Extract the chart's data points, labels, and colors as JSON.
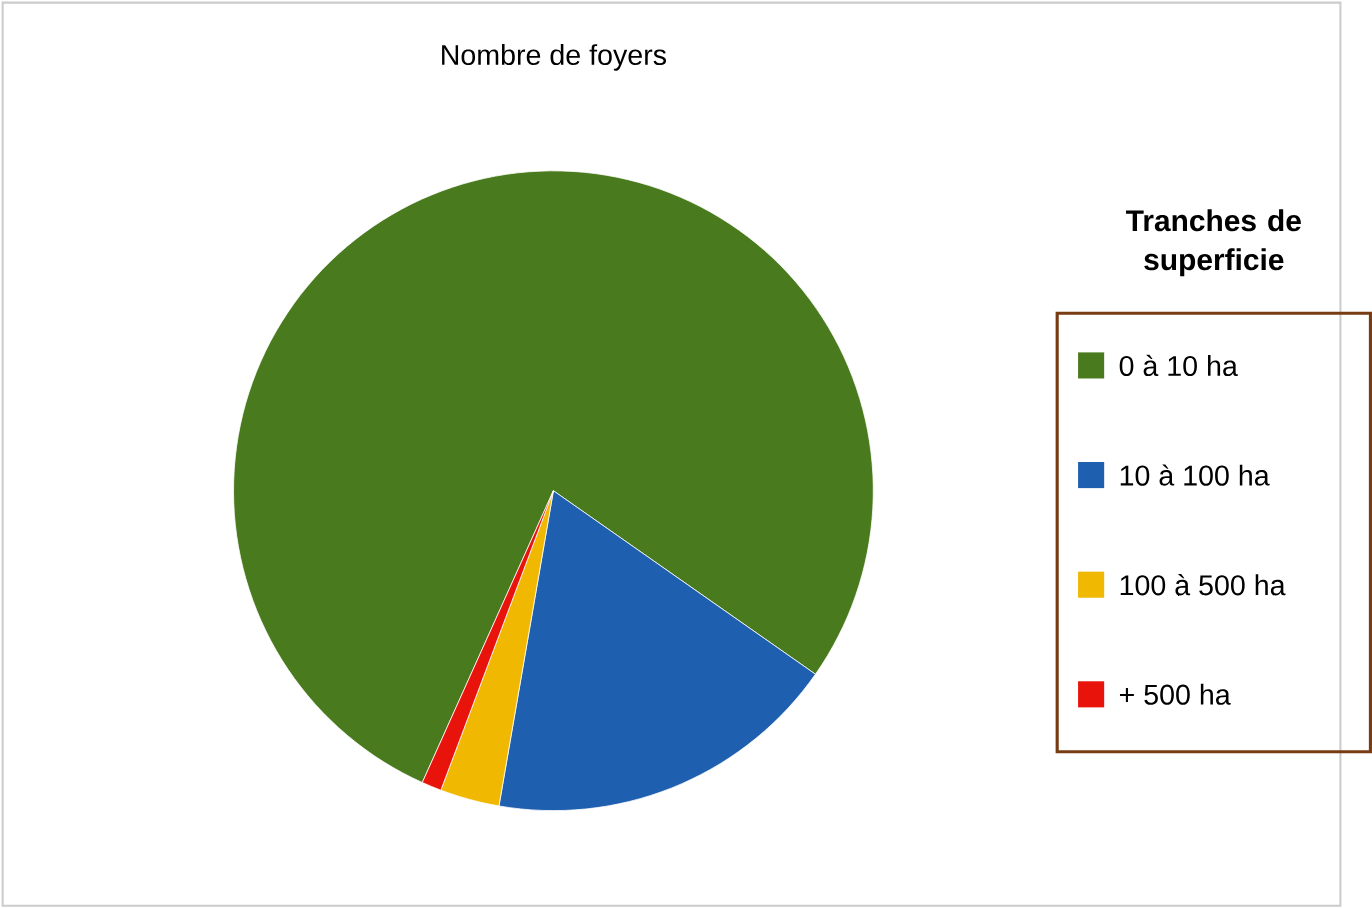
{
  "chart_data": {
    "type": "pie",
    "title": "Nombre de foyers",
    "legend_title": "Tranches de superficie",
    "legend": "right",
    "categories": [
      "0 à 10 ha",
      "10 à 100 ha",
      "100 à 500 ha",
      "+ 500 ha"
    ],
    "values": [
      78,
      18,
      3,
      1
    ],
    "colors": [
      "#4a7a1e",
      "#1f5fb0",
      "#f0b800",
      "#e8140c"
    ]
  }
}
